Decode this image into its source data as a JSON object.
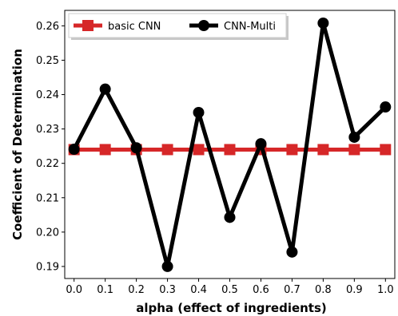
{
  "chart_data": {
    "type": "line",
    "xlabel": "alpha (effect of ingredients)",
    "ylabel": "Coefficient of Determination",
    "x": [
      0.0,
      0.1,
      0.2,
      0.3,
      0.4,
      0.5,
      0.6,
      0.7,
      0.8,
      0.9,
      1.0
    ],
    "x_tick_labels": [
      "0.0",
      "0.1",
      "0.2",
      "0.3",
      "0.4",
      "0.5",
      "0.6",
      "0.7",
      "0.8",
      "0.9",
      "1.0"
    ],
    "xlim": [
      -0.03,
      1.03
    ],
    "ylim": [
      0.1865,
      0.2645
    ],
    "y_ticks": [
      0.19,
      0.2,
      0.21,
      0.22,
      0.23,
      0.24,
      0.25,
      0.26
    ],
    "y_tick_labels": [
      "0.19",
      "0.20",
      "0.21",
      "0.22",
      "0.23",
      "0.24",
      "0.25",
      "0.26"
    ],
    "grid": false,
    "legend_position": "top-left",
    "series": [
      {
        "name": "basic CNN",
        "color": "#d62728",
        "marker": "square",
        "values": [
          0.224,
          0.224,
          0.224,
          0.224,
          0.224,
          0.224,
          0.224,
          0.224,
          0.224,
          0.224,
          0.224
        ]
      },
      {
        "name": "CNN-Multi",
        "color": "#000000",
        "marker": "circle",
        "values": [
          0.2241,
          0.2416,
          0.2245,
          0.19,
          0.2348,
          0.2043,
          0.2257,
          0.1942,
          0.2608,
          0.2276,
          0.2364
        ]
      }
    ]
  }
}
